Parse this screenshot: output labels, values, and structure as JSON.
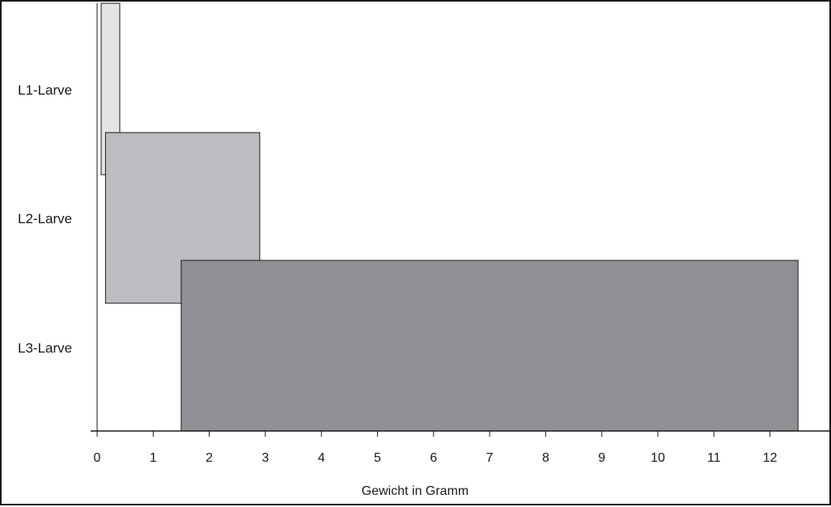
{
  "chart_data": {
    "type": "bar",
    "orientation": "horizontal-range",
    "title": "",
    "xlabel": "Gewicht in Gramm",
    "ylabel": "",
    "xlim": [
      0,
      13
    ],
    "xticks": [
      0,
      1,
      2,
      3,
      4,
      5,
      6,
      7,
      8,
      9,
      10,
      11,
      12
    ],
    "categories": [
      "L1-Larve",
      "L2-Larve",
      "L3-Larve"
    ],
    "ranges": [
      {
        "category": "L1-Larve",
        "start": 0.05,
        "end": 0.4,
        "color": "#e4e4e6"
      },
      {
        "category": "L2-Larve",
        "start": 0.15,
        "end": 2.9,
        "color": "#bcbdc0"
      },
      {
        "category": "L3-Larve",
        "start": 1.5,
        "end": 12.5,
        "color": "#8f9093"
      }
    ],
    "grid": false,
    "legend": "none"
  }
}
